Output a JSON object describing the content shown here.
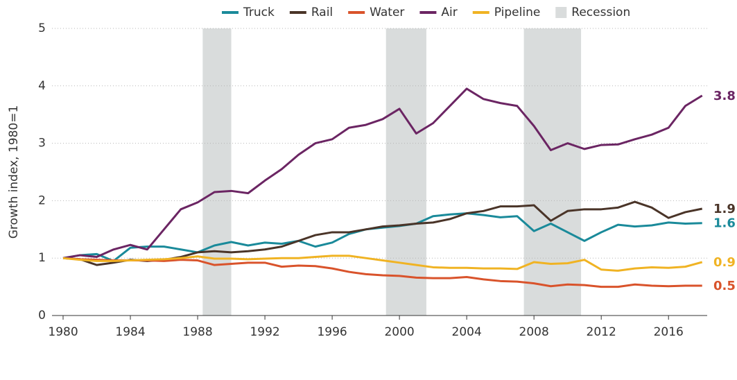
{
  "chart_data": {
    "type": "line",
    "y_label": "Growth index, 1980=1",
    "x": [
      1980,
      1981,
      1982,
      1983,
      1984,
      1985,
      1986,
      1987,
      1988,
      1989,
      1990,
      1991,
      1992,
      1993,
      1994,
      1995,
      1996,
      1997,
      1998,
      1999,
      2000,
      2001,
      2002,
      2003,
      2004,
      2005,
      2006,
      2007,
      2008,
      2009,
      2010,
      2011,
      2012,
      2013,
      2014,
      2015,
      2016,
      2017,
      2018
    ],
    "series": [
      {
        "name": "Truck",
        "color": "#1a8a9a",
        "end_label": "1.6",
        "values": [
          1.0,
          1.05,
          1.07,
          0.95,
          1.18,
          1.2,
          1.2,
          1.15,
          1.1,
          1.22,
          1.28,
          1.22,
          1.27,
          1.25,
          1.3,
          1.2,
          1.27,
          1.42,
          1.5,
          1.53,
          1.56,
          1.6,
          1.73,
          1.76,
          1.78,
          1.75,
          1.71,
          1.73,
          1.47,
          1.6,
          1.45,
          1.3,
          1.45,
          1.58,
          1.55,
          1.57,
          1.62,
          1.6,
          1.61
        ]
      },
      {
        "name": "Rail",
        "color": "#4a3428",
        "end_label": "1.9",
        "values": [
          1.0,
          0.98,
          0.88,
          0.92,
          0.97,
          0.95,
          0.97,
          1.02,
          1.1,
          1.12,
          1.1,
          1.12,
          1.15,
          1.2,
          1.3,
          1.4,
          1.45,
          1.45,
          1.5,
          1.55,
          1.57,
          1.6,
          1.62,
          1.68,
          1.78,
          1.82,
          1.9,
          1.9,
          1.92,
          1.65,
          1.82,
          1.85,
          1.85,
          1.88,
          1.98,
          1.88,
          1.7,
          1.8,
          1.86
        ]
      },
      {
        "name": "Water",
        "color": "#d9532b",
        "end_label": "0.5",
        "values": [
          1.0,
          0.98,
          0.97,
          0.96,
          0.96,
          0.96,
          0.95,
          0.97,
          0.96,
          0.88,
          0.9,
          0.92,
          0.92,
          0.85,
          0.87,
          0.86,
          0.82,
          0.76,
          0.72,
          0.7,
          0.69,
          0.66,
          0.65,
          0.65,
          0.67,
          0.63,
          0.6,
          0.59,
          0.56,
          0.51,
          0.54,
          0.53,
          0.5,
          0.5,
          0.54,
          0.52,
          0.51,
          0.52,
          0.52
        ]
      },
      {
        "name": "Air",
        "color": "#6b2563",
        "end_label": "3.8",
        "values": [
          1.0,
          1.05,
          1.02,
          1.15,
          1.23,
          1.15,
          1.5,
          1.85,
          1.97,
          2.15,
          2.17,
          2.13,
          2.35,
          2.55,
          2.8,
          3.0,
          3.07,
          3.27,
          3.32,
          3.42,
          3.6,
          3.17,
          3.35,
          3.65,
          3.95,
          3.77,
          3.7,
          3.65,
          3.3,
          2.88,
          3.0,
          2.9,
          2.97,
          2.98,
          3.07,
          3.15,
          3.27,
          3.65,
          3.83
        ]
      },
      {
        "name": "Pipeline",
        "color": "#f0b323",
        "end_label": "0.9",
        "values": [
          1.0,
          0.97,
          0.95,
          0.95,
          0.96,
          0.97,
          0.98,
          1.0,
          1.03,
          0.99,
          0.99,
          0.98,
          0.99,
          1.0,
          1.0,
          1.02,
          1.04,
          1.04,
          1.0,
          0.96,
          0.92,
          0.88,
          0.84,
          0.83,
          0.83,
          0.82,
          0.82,
          0.81,
          0.93,
          0.9,
          0.91,
          0.97,
          0.8,
          0.78,
          0.82,
          0.84,
          0.83,
          0.85,
          0.93
        ]
      }
    ],
    "recession_label": "Recession",
    "recession_color": "#d9dcdc",
    "recessions": [
      [
        1988.3,
        1990.0
      ],
      [
        1999.2,
        2001.6
      ],
      [
        2007.4,
        2010.8
      ]
    ],
    "xlim": [
      1979.34,
      2018.3
    ],
    "xticks": [
      1980,
      1984,
      1988,
      1992,
      1996,
      2000,
      2004,
      2008,
      2012,
      2016
    ],
    "ylim": [
      0,
      5
    ],
    "yticks": [
      0,
      1,
      2,
      3,
      4,
      5
    ],
    "grid": true,
    "legend": "top-right"
  }
}
